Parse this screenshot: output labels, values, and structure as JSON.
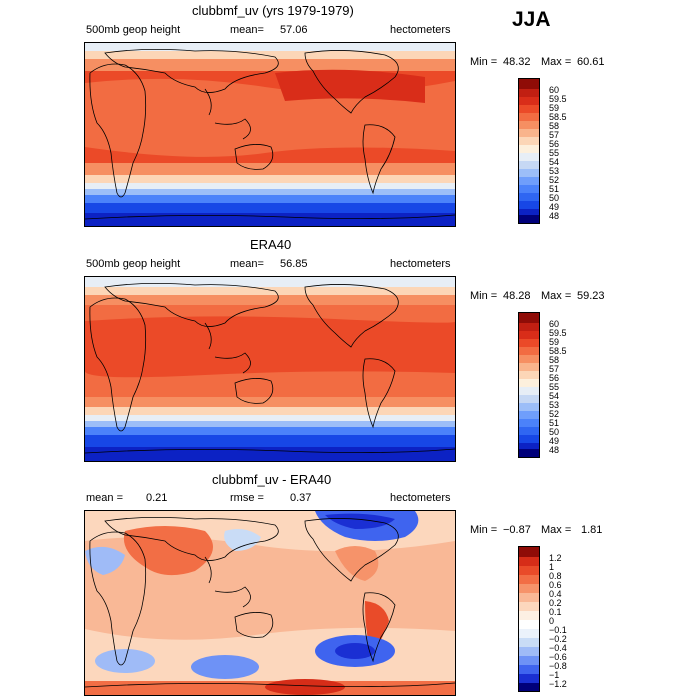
{
  "season": "JJA",
  "colors": {
    "abs_scale": [
      "#00007a",
      "#0c22c4",
      "#1747e6",
      "#2f66f2",
      "#4b82fa",
      "#6f9efb",
      "#9cbef8",
      "#c6d8f4",
      "#e7eef6",
      "#fdf0dd",
      "#fcd6b7",
      "#f9b48c",
      "#f68f62",
      "#f26c42",
      "#eb4a28",
      "#d92d19",
      "#c11f12",
      "#8f0c07"
    ],
    "diff_scale": [
      "#00007a",
      "#1a2fd3",
      "#3f64ef",
      "#6e92f6",
      "#9fbbf7",
      "#c9dcf6",
      "#ebf2fb",
      "#ffffff",
      "#fdf0e3",
      "#fcd7bd",
      "#f9b896",
      "#f6936a",
      "#f26e45",
      "#e94b29",
      "#d62d18",
      "#8f0c07"
    ]
  },
  "panels": [
    {
      "title": "clubbmf_uv (yrs 1979-1979)",
      "field": "500mb geop height",
      "mean_label": "mean=",
      "mean": "57.06",
      "units": "hectometers",
      "min_label": "Min =",
      "min": "48.32",
      "max_label": "Max =",
      "max": "60.61",
      "levels": [
        "60",
        "59.5",
        "59",
        "58.5",
        "58",
        "57",
        "56",
        "55",
        "54",
        "53",
        "52",
        "51",
        "50",
        "49",
        "48"
      ]
    },
    {
      "title": "ERA40",
      "field": "500mb geop height",
      "mean_label": "mean=",
      "mean": "56.85",
      "units": "hectometers",
      "min_label": "Min =",
      "min": "48.28",
      "max_label": "Max =",
      "max": "59.23",
      "levels": [
        "60",
        "59.5",
        "59",
        "58.5",
        "58",
        "57",
        "56",
        "55",
        "54",
        "53",
        "52",
        "51",
        "50",
        "49",
        "48"
      ]
    },
    {
      "title": "clubbmf_uv - ERA40",
      "mean_label": "mean =",
      "mean": "0.21",
      "rmse_label": "rmse =",
      "rmse": "0.37",
      "units": "hectometers",
      "min_label": "Min =",
      "min": "−0.87",
      "max_label": "Max =",
      "max": "1.81",
      "levels": [
        "1.2",
        "1",
        "0.8",
        "0.6",
        "0.4",
        "0.2",
        "0.1",
        "0",
        "−0.1",
        "−0.2",
        "−0.4",
        "−0.6",
        "−0.8",
        "−1",
        "−1.2"
      ]
    }
  ]
}
